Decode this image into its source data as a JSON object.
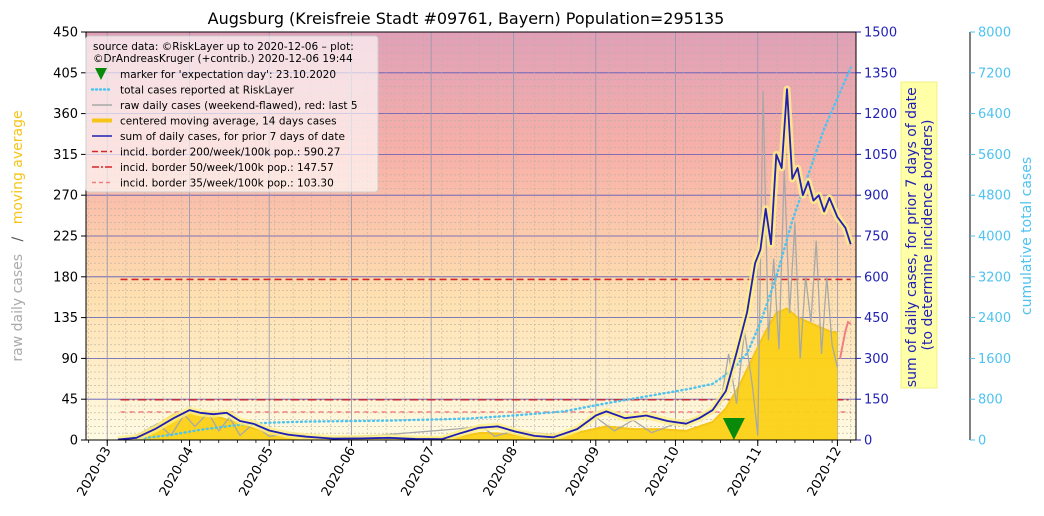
{
  "chart_data": {
    "type": "line",
    "title": "Augsburg (Kreisfreie Stadt #09761, Bayern) Population=295135",
    "ylabel_left_parts": [
      "raw daily cases",
      "/",
      "moving average"
    ],
    "ylabel_mid_lines": [
      "sum of daily cases, for prior 7 days of date",
      "(to determine incidence borders)"
    ],
    "ylabel_right": "cumulative total cases",
    "x_ticks": [
      "2020-03",
      "2020-04",
      "2020-05",
      "2020-06",
      "2020-07",
      "2020-08",
      "2020-09",
      "2020-10",
      "2020-11",
      "2020-12"
    ],
    "y_left_ticks": [
      "0",
      "45",
      "90",
      "135",
      "180",
      "225",
      "270",
      "315",
      "360",
      "405",
      "450"
    ],
    "y_mid_ticks": [
      "0",
      "150",
      "300",
      "450",
      "600",
      "750",
      "900",
      "1050",
      "1200",
      "1350",
      "1500"
    ],
    "y_right_ticks": [
      "0",
      "800",
      "1600",
      "2400",
      "3200",
      "4000",
      "4800",
      "5600",
      "6400",
      "7200",
      "8000"
    ],
    "ylim_left": [
      0,
      450
    ],
    "ylim_mid": [
      0,
      1500
    ],
    "ylim_right": [
      0,
      8000
    ],
    "x_range_days_from_2020_03_01": [
      -8,
      282
    ],
    "grid": true,
    "legend_placement": "top-left",
    "legend": {
      "source_line1": "source data: ©RiskLayer up to 2020-12-06 – plot:",
      "source_line2": "©DrAndreasKruger (+contrib.) 2020-12-06 19:44",
      "items": [
        {
          "key": "marker",
          "label": "marker for 'expectation day': 23.10.2020"
        },
        {
          "key": "total",
          "label": "total cases reported at RiskLayer"
        },
        {
          "key": "raw",
          "label": "raw daily cases (weekend-flawed), red: last 5"
        },
        {
          "key": "avg",
          "label": "centered moving average, 14 days cases"
        },
        {
          "key": "sum7",
          "label": "sum of daily cases, for prior 7 days of date"
        },
        {
          "key": "b200",
          "label": "incid. border 200/week/100k pop.: 590.27"
        },
        {
          "key": "b50",
          "label": "incid. border 50/week/100k pop.: 147.57"
        },
        {
          "key": "b35",
          "label": "incid. border 35/week/100k pop.: 103.30"
        }
      ]
    },
    "incidence_borders_7day_sum": [
      590.27,
      147.57,
      103.3
    ],
    "expectation_day": "2020-10-23",
    "series_notes": "x values are dates (ISO)",
    "sum7_series": [
      [
        "2020-03-05",
        2
      ],
      [
        "2020-03-12",
        8
      ],
      [
        "2020-03-19",
        40
      ],
      [
        "2020-03-26",
        80
      ],
      [
        "2020-04-01",
        110
      ],
      [
        "2020-04-05",
        100
      ],
      [
        "2020-04-10",
        95
      ],
      [
        "2020-04-15",
        100
      ],
      [
        "2020-04-20",
        70
      ],
      [
        "2020-04-25",
        60
      ],
      [
        "2020-05-01",
        35
      ],
      [
        "2020-05-08",
        20
      ],
      [
        "2020-05-15",
        12
      ],
      [
        "2020-05-25",
        5
      ],
      [
        "2020-06-05",
        6
      ],
      [
        "2020-06-15",
        8
      ],
      [
        "2020-06-25",
        4
      ],
      [
        "2020-07-05",
        3
      ],
      [
        "2020-07-12",
        25
      ],
      [
        "2020-07-19",
        45
      ],
      [
        "2020-07-26",
        50
      ],
      [
        "2020-08-02",
        30
      ],
      [
        "2020-08-09",
        15
      ],
      [
        "2020-08-16",
        10
      ],
      [
        "2020-08-25",
        40
      ],
      [
        "2020-09-01",
        90
      ],
      [
        "2020-09-05",
        105
      ],
      [
        "2020-09-12",
        80
      ],
      [
        "2020-09-20",
        90
      ],
      [
        "2020-09-28",
        70
      ],
      [
        "2020-10-05",
        60
      ],
      [
        "2020-10-10",
        80
      ],
      [
        "2020-10-15",
        110
      ],
      [
        "2020-10-20",
        180
      ],
      [
        "2020-10-24",
        320
      ],
      [
        "2020-10-28",
        470
      ],
      [
        "2020-10-31",
        650
      ],
      [
        "2020-11-02",
        700
      ],
      [
        "2020-11-04",
        850
      ],
      [
        "2020-11-06",
        720
      ],
      [
        "2020-11-08",
        1050
      ],
      [
        "2020-11-10",
        1000
      ],
      [
        "2020-11-12",
        1290
      ],
      [
        "2020-11-14",
        960
      ],
      [
        "2020-11-16",
        1000
      ],
      [
        "2020-11-18",
        900
      ],
      [
        "2020-11-20",
        950
      ],
      [
        "2020-11-22",
        880
      ],
      [
        "2020-11-24",
        900
      ],
      [
        "2020-11-26",
        840
      ],
      [
        "2020-11-28",
        890
      ],
      [
        "2020-12-01",
        820
      ],
      [
        "2020-12-04",
        780
      ],
      [
        "2020-12-06",
        720
      ]
    ],
    "avg_series": [
      [
        "2020-03-12",
        5
      ],
      [
        "2020-03-19",
        15
      ],
      [
        "2020-03-26",
        28
      ],
      [
        "2020-04-02",
        30
      ],
      [
        "2020-04-10",
        27
      ],
      [
        "2020-04-18",
        20
      ],
      [
        "2020-04-26",
        12
      ],
      [
        "2020-05-05",
        6
      ],
      [
        "2020-05-15",
        3
      ],
      [
        "2020-06-01",
        2
      ],
      [
        "2020-06-20",
        1
      ],
      [
        "2020-07-10",
        3
      ],
      [
        "2020-07-20",
        8
      ],
      [
        "2020-07-28",
        7
      ],
      [
        "2020-08-10",
        3
      ],
      [
        "2020-08-25",
        8
      ],
      [
        "2020-09-05",
        15
      ],
      [
        "2020-09-15",
        12
      ],
      [
        "2020-09-25",
        12
      ],
      [
        "2020-10-05",
        10
      ],
      [
        "2020-10-15",
        20
      ],
      [
        "2020-10-20",
        35
      ],
      [
        "2020-10-25",
        60
      ],
      [
        "2020-10-30",
        90
      ],
      [
        "2020-11-04",
        120
      ],
      [
        "2020-11-08",
        140
      ],
      [
        "2020-11-12",
        145
      ],
      [
        "2020-11-16",
        135
      ],
      [
        "2020-11-20",
        130
      ],
      [
        "2020-11-24",
        125
      ],
      [
        "2020-11-28",
        120
      ],
      [
        "2020-12-01",
        118
      ]
    ],
    "raw_series": [
      [
        "2020-03-10",
        2
      ],
      [
        "2020-03-15",
        10
      ],
      [
        "2020-03-20",
        18
      ],
      [
        "2020-03-25",
        5
      ],
      [
        "2020-03-30",
        28
      ],
      [
        "2020-04-03",
        15
      ],
      [
        "2020-04-08",
        30
      ],
      [
        "2020-04-12",
        10
      ],
      [
        "2020-04-16",
        25
      ],
      [
        "2020-04-20",
        5
      ],
      [
        "2020-04-25",
        18
      ],
      [
        "2020-05-01",
        4
      ],
      [
        "2020-05-10",
        8
      ],
      [
        "2020-05-20",
        2
      ],
      [
        "2020-06-10",
        5
      ],
      [
        "2020-07-10",
        12
      ],
      [
        "2020-07-20",
        15
      ],
      [
        "2020-07-25",
        4
      ],
      [
        "2020-08-01",
        10
      ],
      [
        "2020-08-20",
        5
      ],
      [
        "2020-09-01",
        25
      ],
      [
        "2020-09-08",
        10
      ],
      [
        "2020-09-15",
        22
      ],
      [
        "2020-09-22",
        8
      ],
      [
        "2020-10-01",
        18
      ],
      [
        "2020-10-10",
        25
      ],
      [
        "2020-10-18",
        40
      ],
      [
        "2020-10-21",
        95
      ],
      [
        "2020-10-24",
        40
      ],
      [
        "2020-10-27",
        120
      ],
      [
        "2020-10-30",
        60
      ],
      [
        "2020-11-01",
        5
      ],
      [
        "2020-11-03",
        385
      ],
      [
        "2020-11-05",
        110
      ],
      [
        "2020-11-07",
        200
      ],
      [
        "2020-11-09",
        100
      ],
      [
        "2020-11-11",
        300
      ],
      [
        "2020-11-13",
        140
      ],
      [
        "2020-11-15",
        240
      ],
      [
        "2020-11-17",
        90
      ],
      [
        "2020-11-19",
        180
      ],
      [
        "2020-11-21",
        130
      ],
      [
        "2020-11-23",
        220
      ],
      [
        "2020-11-25",
        95
      ],
      [
        "2020-11-27",
        180
      ],
      [
        "2020-11-29",
        105
      ],
      [
        "2020-12-01",
        80
      ]
    ],
    "raw_last5_series": [
      [
        "2020-12-02",
        90
      ],
      [
        "2020-12-03",
        105
      ],
      [
        "2020-12-04",
        120
      ],
      [
        "2020-12-05",
        130
      ],
      [
        "2020-12-06",
        128
      ]
    ],
    "total_series": [
      [
        "2020-03-10",
        5
      ],
      [
        "2020-03-25",
        100
      ],
      [
        "2020-04-05",
        200
      ],
      [
        "2020-04-20",
        300
      ],
      [
        "2020-05-01",
        340
      ],
      [
        "2020-05-15",
        360
      ],
      [
        "2020-06-15",
        380
      ],
      [
        "2020-07-15",
        420
      ],
      [
        "2020-08-01",
        480
      ],
      [
        "2020-08-20",
        560
      ],
      [
        "2020-09-05",
        720
      ],
      [
        "2020-09-25",
        900
      ],
      [
        "2020-10-05",
        990
      ],
      [
        "2020-10-15",
        1100
      ],
      [
        "2020-10-22",
        1350
      ],
      [
        "2020-10-28",
        1700
      ],
      [
        "2020-11-02",
        2300
      ],
      [
        "2020-11-08",
        3200
      ],
      [
        "2020-11-14",
        4300
      ],
      [
        "2020-11-20",
        5200
      ],
      [
        "2020-11-26",
        6100
      ],
      [
        "2020-12-01",
        6700
      ],
      [
        "2020-12-06",
        7300
      ]
    ]
  }
}
